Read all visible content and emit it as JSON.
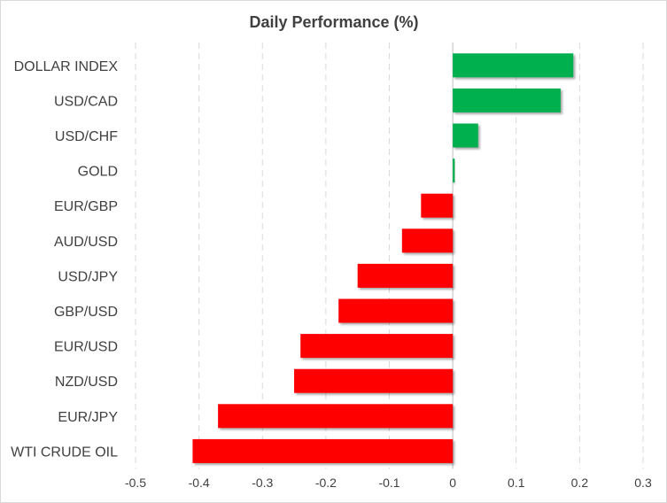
{
  "chart_data": {
    "type": "bar",
    "orientation": "horizontal",
    "title": "Daily Performance (%)",
    "xlabel": "",
    "ylabel": "",
    "xlim": [
      -0.5,
      0.3
    ],
    "xticks": [
      -0.5,
      -0.4,
      -0.3,
      -0.2,
      -0.1,
      0,
      0.1,
      0.2,
      0.3
    ],
    "xtick_labels": [
      "-0.5",
      "-0.4",
      "-0.3",
      "-0.2",
      "-0.1",
      "0",
      "0.1",
      "0.2",
      "0.3"
    ],
    "grid": "vertical dashed",
    "legend": "none",
    "categories": [
      "DOLLAR INDEX",
      "USD/CAD",
      "USD/CHF",
      "GOLD",
      "EUR/GBP",
      "AUD/USD",
      "USD/JPY",
      "GBP/USD",
      "EUR/USD",
      "NZD/USD",
      "EUR/JPY",
      "WTI CRUDE OIL"
    ],
    "values": [
      0.19,
      0.17,
      0.04,
      0.003,
      -0.05,
      -0.08,
      -0.15,
      -0.18,
      -0.24,
      -0.25,
      -0.37,
      -0.41
    ],
    "colors": {
      "positive": "#00b050",
      "negative": "#ff0000"
    }
  }
}
